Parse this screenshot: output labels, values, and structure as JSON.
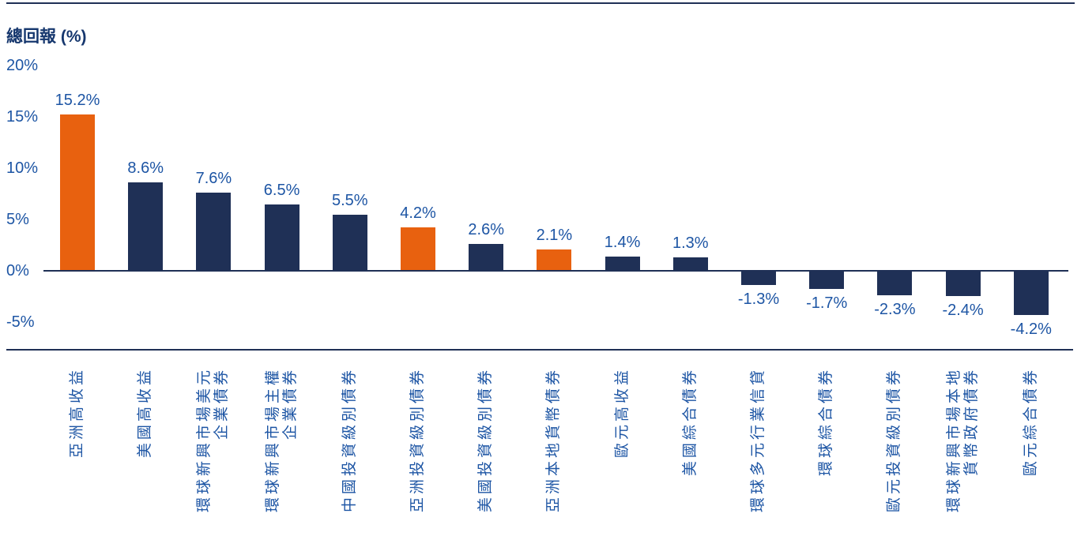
{
  "header": {
    "title": "總回報 (%)"
  },
  "colors": {
    "bar_default": "#1F3056",
    "bar_highlight": "#E8610F",
    "text_blue": "#1D55A4",
    "title_blue": "#16376E",
    "rule_navy": "#1F3056",
    "background": "#FFFFFF"
  },
  "chart_data": {
    "type": "bar",
    "title": "總回報 (%)",
    "xlabel": "",
    "ylabel": "總回報 (%)",
    "grid": false,
    "legend_position": "none",
    "ylim": [
      -5,
      20
    ],
    "ytick_labels": [
      "20%",
      "15%",
      "10%",
      "5%",
      "0%",
      "-5%"
    ],
    "ytick_values": [
      20,
      15,
      10,
      5,
      0,
      -5
    ],
    "categories": [
      "亞洲高收益",
      "美國高收益",
      "環球新興市場美元\n企業債券",
      "環球新興市場主權\n企業債券",
      "中國投資級別債券",
      "亞洲投資級別債券",
      "美國投資級別債券",
      "亞洲本地貨幣債券",
      "歐元高收益",
      "美國綜合債券",
      "環球多元行業信貸",
      "環球綜合債券",
      "歐元投資級別債券",
      "環球新興市場本地\n貨幣政府債券",
      "歐元綜合債券"
    ],
    "values": [
      15.2,
      8.6,
      7.6,
      6.5,
      5.5,
      4.2,
      2.6,
      2.1,
      1.4,
      1.3,
      -1.3,
      -1.7,
      -2.3,
      -2.4,
      -4.2
    ],
    "value_labels": [
      "15.2%",
      "8.6%",
      "7.6%",
      "6.5%",
      "5.5%",
      "4.2%",
      "2.6%",
      "2.1%",
      "1.4%",
      "1.3%",
      "-1.3%",
      "-1.7%",
      "-2.3%",
      "-2.4%",
      "-4.2%"
    ],
    "highlighted_indices": [
      0,
      5,
      7
    ],
    "highlight_meaning": "asia-related-series"
  }
}
